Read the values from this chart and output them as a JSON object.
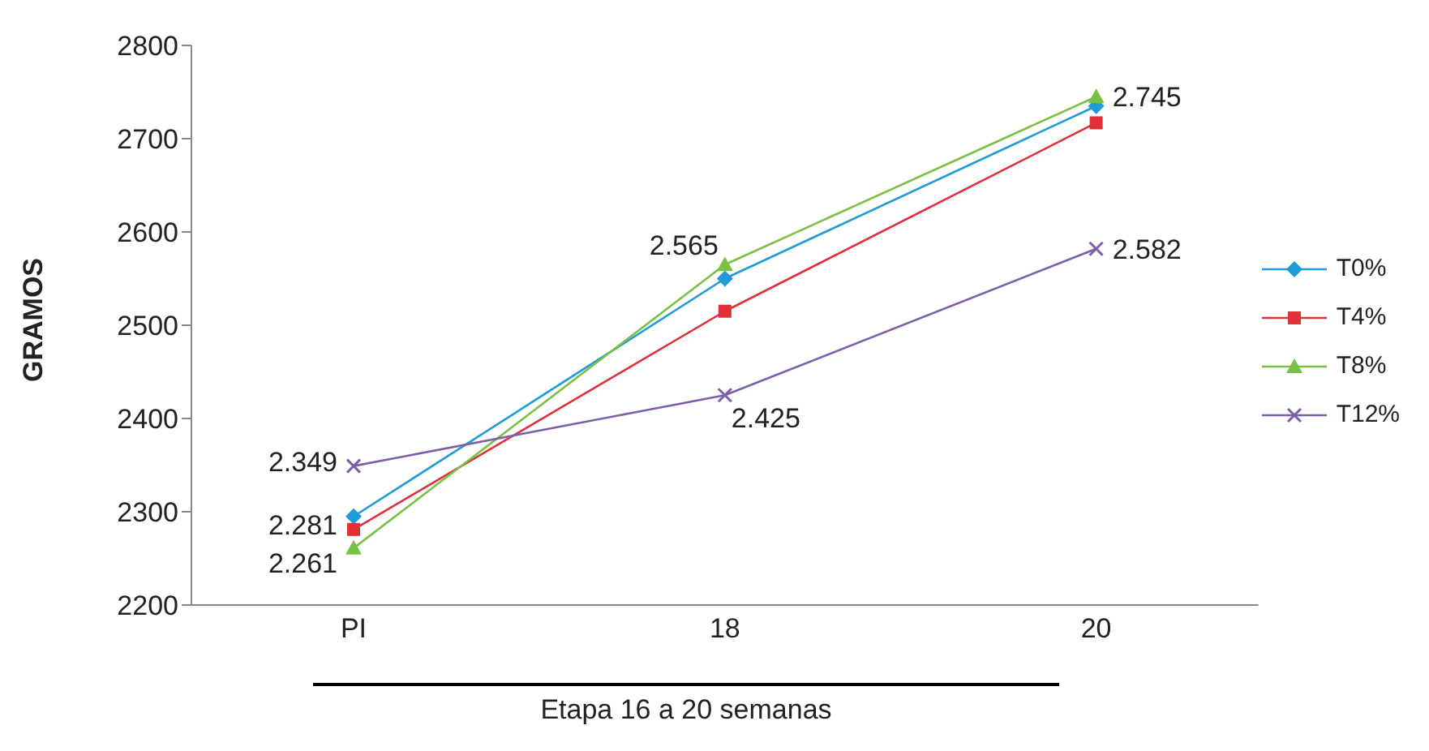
{
  "chart_data": {
    "type": "line",
    "xlabel": "Etapa 16 a 20 semanas",
    "ylabel": "GRAMOS",
    "categories": [
      "PI",
      "18",
      "20"
    ],
    "ylim": [
      2200,
      2800
    ],
    "yticks": [
      2200,
      2300,
      2400,
      2500,
      2600,
      2700,
      2800
    ],
    "legend": "right",
    "series": [
      {
        "name": "T0%",
        "color": "#1f9bd7",
        "marker": "diamond",
        "values": [
          2295,
          2550,
          2735
        ]
      },
      {
        "name": "T4%",
        "color": "#e0303a",
        "marker": "square",
        "values": [
          2281,
          2515,
          2717
        ],
        "value_labels": [
          "2.281",
          null,
          null
        ]
      },
      {
        "name": "T8%",
        "color": "#7ac143",
        "marker": "triangle",
        "values": [
          2261,
          2565,
          2745
        ],
        "value_labels": [
          "2.261",
          "2.565",
          "2.745"
        ]
      },
      {
        "name": "T12%",
        "color": "#7b5fa8",
        "marker": "cross",
        "values": [
          2349,
          2425,
          2582
        ],
        "value_labels": [
          "2.349",
          "2.425",
          "2.582"
        ]
      }
    ]
  }
}
